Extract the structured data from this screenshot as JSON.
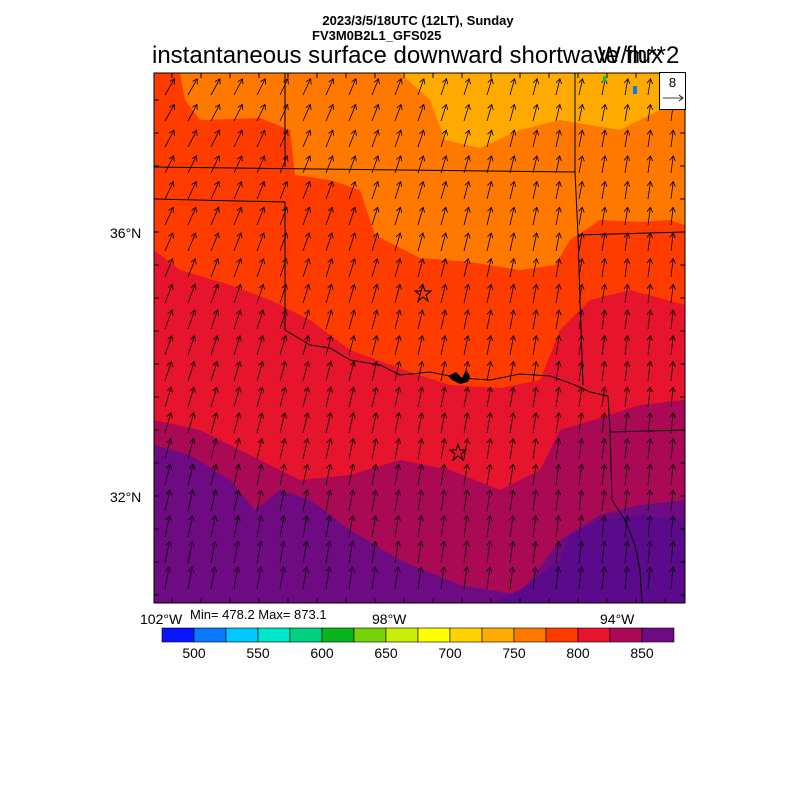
{
  "header": {
    "line1": "2023/3/5/18UTC (12LT), Sunday",
    "line2": "FV3M0B2L1_GFS025",
    "title": "instantaneous surface downward shortwave flux",
    "units": "W/m**2"
  },
  "map": {
    "lat_labels": [
      "36°N",
      "32°N"
    ],
    "lon_labels": [
      "102°W",
      "98°W",
      "94°W"
    ],
    "markers": [
      "star-marker-north",
      "star-marker-south"
    ]
  },
  "stats": {
    "text": "Min= 478.2 Max= 873.1",
    "min": 478.2,
    "max": 873.1
  },
  "vector_reference": {
    "value": "8"
  },
  "colorbar": {
    "colors": [
      "#0a14ff",
      "#0a78ff",
      "#00c8ff",
      "#00e6c8",
      "#00d282",
      "#0ab41e",
      "#78d20a",
      "#c8f00a",
      "#ffff00",
      "#ffd200",
      "#ffaa00",
      "#ff7800",
      "#ff3c00",
      "#e6142d",
      "#aa0a55",
      "#6e0a82"
    ],
    "labels": [
      "500",
      "550",
      "600",
      "650",
      "700",
      "750",
      "800",
      "850"
    ]
  },
  "legend_colors": {
    "orange": "#ffaa00",
    "dark_orange": "#ff7800",
    "red_orange": "#ff3c00",
    "red": "#e6142d",
    "maroon": "#aa0a55",
    "purple": "#6e0a82"
  }
}
